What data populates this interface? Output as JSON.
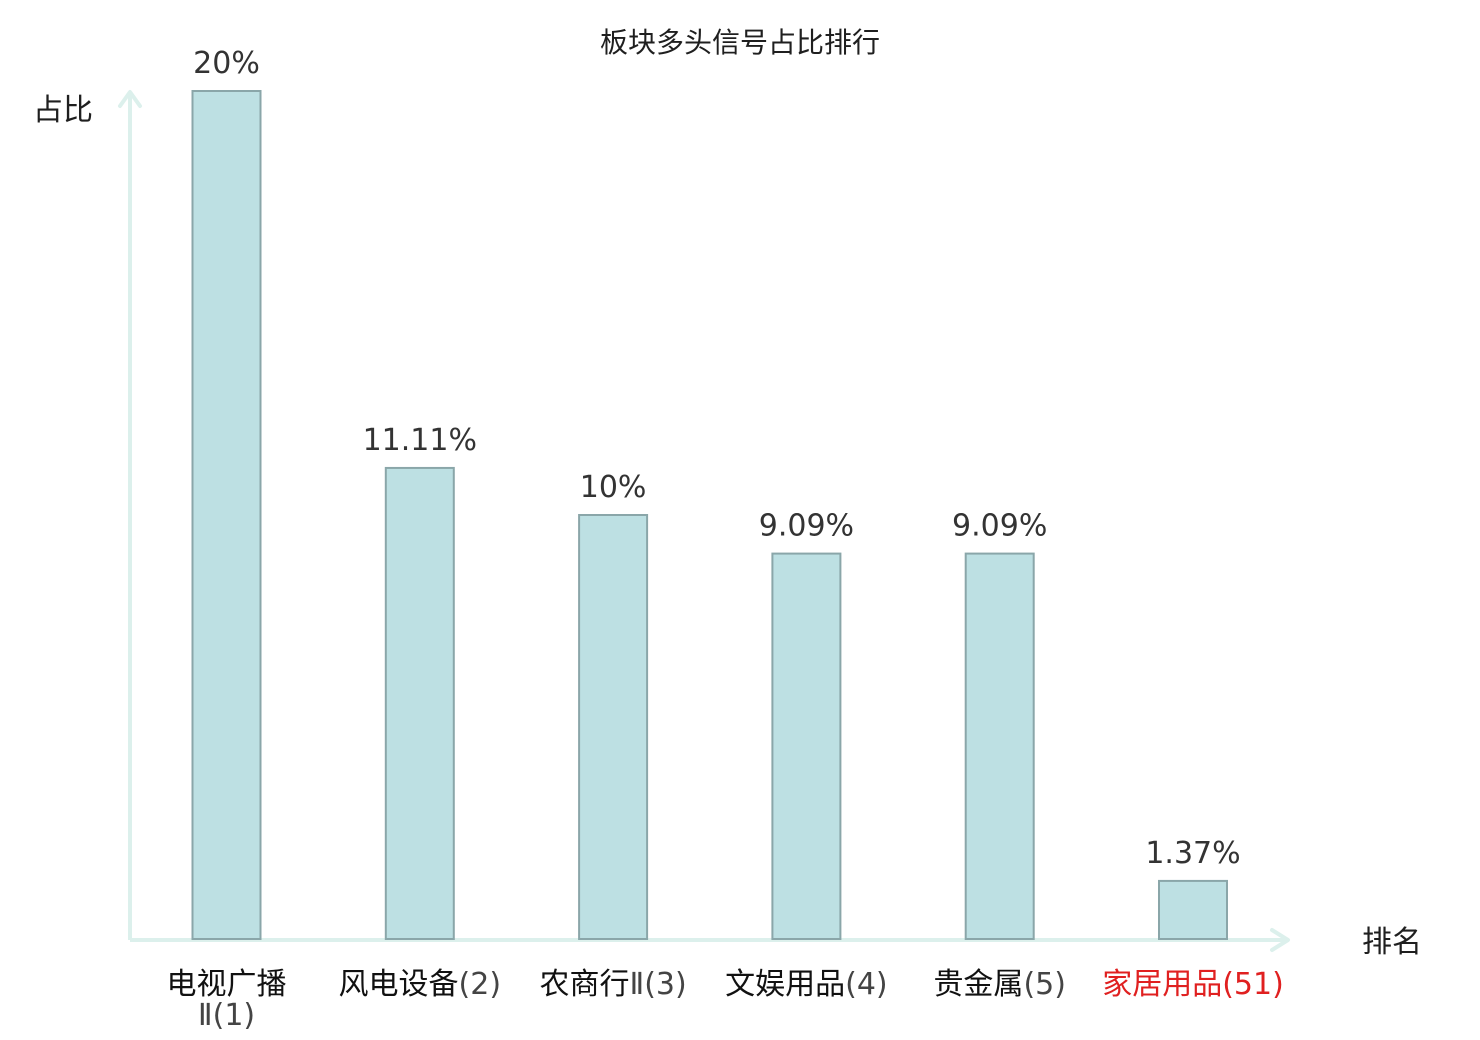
{
  "chart_data": {
    "type": "bar",
    "title": "板块多头信号占比排行",
    "ylabel": "占比",
    "xlabel": "排名",
    "ylim": [
      0,
      20
    ],
    "unit": "%",
    "categories": [
      {
        "name": "电视广播",
        "suffix": "Ⅱ(1)",
        "highlight": false
      },
      {
        "name": "风电设备",
        "suffix": "(2)",
        "highlight": false
      },
      {
        "name": "农商行",
        "suffix": "Ⅱ(3)",
        "highlight": false
      },
      {
        "name": "文娱用品",
        "suffix": "(4)",
        "highlight": false
      },
      {
        "name": "贵金属",
        "suffix": "(5)",
        "highlight": false
      },
      {
        "name": "家居用品",
        "suffix": "(51)",
        "highlight": true
      }
    ],
    "values": [
      20,
      11.11,
      10,
      9.09,
      9.09,
      1.37
    ],
    "value_labels": [
      "20%",
      "11.11%",
      "10%",
      "9.09%",
      "9.09%",
      "1.37%"
    ],
    "colors": {
      "bar_fill": "#bde0e3",
      "bar_stroke": "#8aa6a9",
      "axis": "#dcf0ec",
      "label_normal": "#111111",
      "suffix_normal": "#444444",
      "highlight": "#e02020"
    }
  }
}
